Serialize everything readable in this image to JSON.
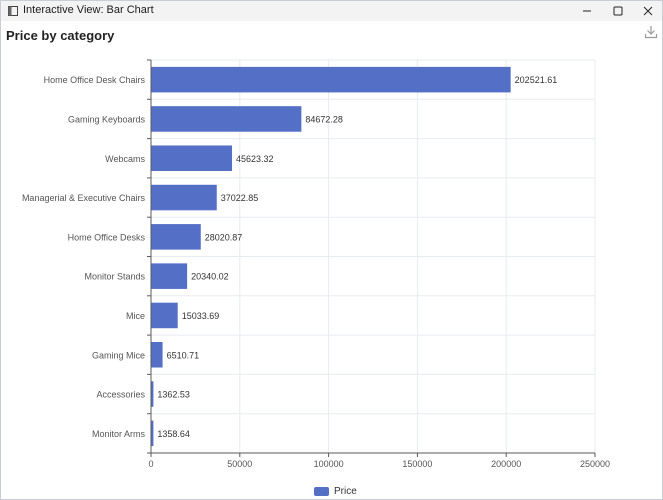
{
  "window": {
    "title": "Interactive View: Bar Chart",
    "minimize_icon": "minimize-icon",
    "maximize_icon": "maximize-icon",
    "close_icon": "close-icon"
  },
  "toolbar": {
    "download_icon": "download-icon"
  },
  "colors": {
    "bar": "#5470c6",
    "grid": "#e8ebf0",
    "axis": "#5a5a5a",
    "label": "#555555"
  },
  "chart_data": {
    "type": "bar",
    "orientation": "horizontal",
    "title": "Price by category",
    "categories": [
      "Home Office Desk Chairs",
      "Gaming Keyboards",
      "Webcams",
      "Managerial & Executive Chairs",
      "Home Office Desks",
      "Monitor Stands",
      "Mice",
      "Gaming Mice",
      "Accessories",
      "Monitor Arms"
    ],
    "series": [
      {
        "name": "Price",
        "values": [
          202521.61,
          84672.28,
          45623.32,
          37022.85,
          28020.87,
          20340.02,
          15033.69,
          6510.71,
          1362.53,
          1358.64
        ]
      }
    ],
    "value_labels": [
      "202521.61",
      "84672.28",
      "45623.32",
      "37022.85",
      "28020.87",
      "20340.02",
      "15033.69",
      "6510.71",
      "1362.53",
      "1358.64"
    ],
    "xlim": [
      0,
      250000
    ],
    "xticks": [
      "0",
      "50000",
      "100000",
      "150000",
      "200000",
      "250000"
    ],
    "xtick_values": [
      0,
      50000,
      100000,
      150000,
      200000,
      250000
    ],
    "grid": true,
    "legend": "bottom-center"
  }
}
